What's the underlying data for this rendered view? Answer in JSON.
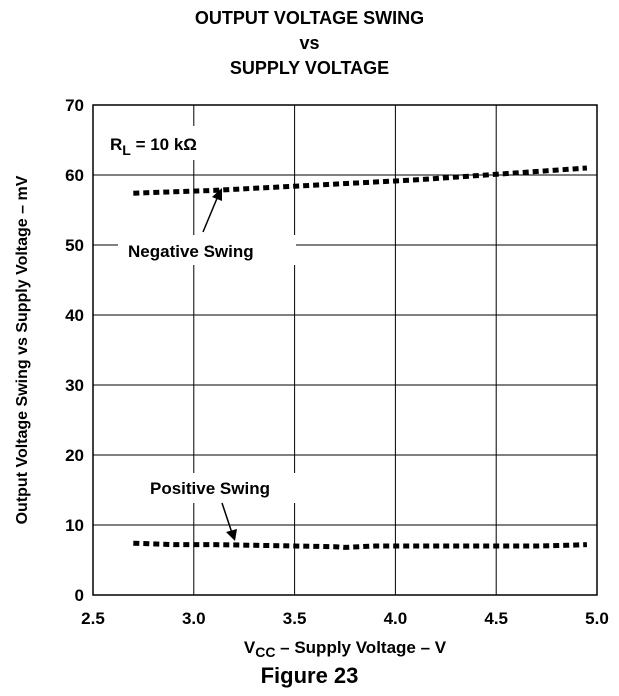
{
  "chart_data": {
    "type": "line",
    "title_lines": [
      "OUTPUT VOLTAGE SWING",
      "vs",
      "SUPPLY VOLTAGE"
    ],
    "xlabel_prefix": "V",
    "xlabel_sub": "CC",
    "xlabel_suffix": " – Supply Voltage – V",
    "ylabel": "Output Voltage Swing vs Supply Voltage – mV",
    "xlim": [
      2.5,
      5.0
    ],
    "ylim": [
      0,
      70
    ],
    "x_ticks": [
      "2.5",
      "3.0",
      "3.5",
      "4.0",
      "4.5",
      "5.0"
    ],
    "y_ticks": [
      "0",
      "10",
      "20",
      "30",
      "40",
      "50",
      "60",
      "70"
    ],
    "grid": true,
    "condition_prefix": "R",
    "condition_sub": "L",
    "condition_suffix": " = 10 kΩ",
    "series": [
      {
        "name": "Negative Swing",
        "x": [
          2.7,
          2.9,
          3.1,
          3.3,
          3.5,
          3.7,
          3.9,
          4.1,
          4.3,
          4.5,
          4.7,
          4.95
        ],
        "y": [
          57.4,
          57.6,
          57.8,
          58.1,
          58.4,
          58.7,
          59.0,
          59.3,
          59.7,
          60.1,
          60.5,
          61.0
        ]
      },
      {
        "name": "Positive Swing",
        "x": [
          2.7,
          2.9,
          3.1,
          3.3,
          3.5,
          3.7,
          3.75,
          3.9,
          4.1,
          4.3,
          4.5,
          4.7,
          4.85,
          4.95
        ],
        "y": [
          7.4,
          7.2,
          7.2,
          7.1,
          7.0,
          6.9,
          6.8,
          7.0,
          7.0,
          7.0,
          7.0,
          7.0,
          7.1,
          7.2
        ]
      }
    ]
  },
  "figure_label": "Figure 23"
}
